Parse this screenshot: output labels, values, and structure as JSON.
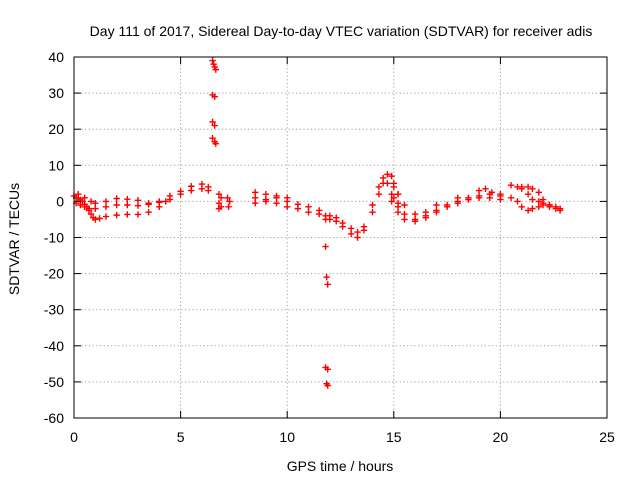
{
  "chart_data": {
    "type": "scatter",
    "title": "Day 111 of 2017, Sidereal Day-to-day VTEC variation (SDTVAR) for receiver adis",
    "xlabel": "GPS time / hours",
    "ylabel": "SDTVAR / TECUs",
    "xlim": [
      0,
      25
    ],
    "ylim": [
      -60,
      40
    ],
    "x_ticks": [
      0,
      5,
      10,
      15,
      20,
      25
    ],
    "y_ticks": [
      -60,
      -50,
      -40,
      -30,
      -20,
      -10,
      0,
      10,
      20,
      30,
      40
    ],
    "grid": true,
    "marker": "+",
    "colors": {
      "series": "#ff0000",
      "grid": "#a0a0a0",
      "axis": "#000000"
    },
    "series": [
      {
        "name": "SDTVAR",
        "points": [
          [
            0.0,
            1.5
          ],
          [
            0.1,
            1.0
          ],
          [
            0.2,
            0.8
          ],
          [
            0.3,
            0.4
          ],
          [
            0.4,
            0.0
          ],
          [
            0.5,
            -0.8
          ],
          [
            0.6,
            -1.5
          ],
          [
            0.7,
            -2.5
          ],
          [
            0.8,
            -3.5
          ],
          [
            0.9,
            -4.5
          ],
          [
            1.0,
            -5.0
          ],
          [
            1.2,
            -4.7
          ],
          [
            1.5,
            -4.2
          ],
          [
            2.0,
            -3.8
          ],
          [
            2.5,
            -3.6
          ],
          [
            3.0,
            -3.6
          ],
          [
            3.5,
            -3.0
          ],
          [
            4.0,
            -1.5
          ],
          [
            4.5,
            0.5
          ],
          [
            5.0,
            2.0
          ],
          [
            5.5,
            3.0
          ],
          [
            6.0,
            3.5
          ],
          [
            6.3,
            3.0
          ],
          [
            0.1,
            -0.5
          ],
          [
            0.3,
            -1.0
          ],
          [
            0.5,
            -1.5
          ],
          [
            0.7,
            -2.0
          ],
          [
            1.0,
            -2.0
          ],
          [
            1.5,
            -1.5
          ],
          [
            2.0,
            -1.0
          ],
          [
            2.5,
            -1.0
          ],
          [
            3.0,
            -1.2
          ],
          [
            3.5,
            -0.8
          ],
          [
            4.0,
            0.0
          ],
          [
            4.5,
            1.5
          ],
          [
            5.0,
            2.8
          ],
          [
            5.5,
            4.2
          ],
          [
            6.0,
            4.8
          ],
          [
            6.3,
            4.0
          ],
          [
            0.2,
            2.0
          ],
          [
            0.5,
            1.0
          ],
          [
            0.8,
            0.0
          ],
          [
            1.0,
            -0.5
          ],
          [
            1.5,
            0.0
          ],
          [
            2.0,
            0.8
          ],
          [
            2.5,
            0.6
          ],
          [
            3.0,
            0.3
          ],
          [
            3.5,
            -0.5
          ],
          [
            4.0,
            -0.3
          ],
          [
            4.3,
            0.0
          ],
          [
            6.5,
            39.0
          ],
          [
            6.55,
            38.0
          ],
          [
            6.6,
            37.2
          ],
          [
            6.65,
            36.5
          ],
          [
            6.5,
            29.5
          ],
          [
            6.6,
            29.0
          ],
          [
            6.5,
            22.0
          ],
          [
            6.6,
            21.0
          ],
          [
            6.5,
            17.5
          ],
          [
            6.6,
            16.5
          ],
          [
            6.65,
            16.0
          ],
          [
            6.8,
            2.0
          ],
          [
            6.9,
            1.0
          ],
          [
            6.8,
            -0.5
          ],
          [
            6.9,
            -1.5
          ],
          [
            6.8,
            -2.0
          ],
          [
            7.2,
            1.0
          ],
          [
            7.3,
            0.0
          ],
          [
            7.25,
            -1.5
          ],
          [
            8.5,
            2.5
          ],
          [
            9.0,
            2.0
          ],
          [
            9.5,
            1.5
          ],
          [
            10.0,
            0.0
          ],
          [
            10.5,
            -0.8
          ],
          [
            11.0,
            -1.5
          ],
          [
            11.5,
            -2.5
          ],
          [
            11.8,
            -4.0
          ],
          [
            8.5,
            1.0
          ],
          [
            9.0,
            0.5
          ],
          [
            9.5,
            -0.5
          ],
          [
            10.0,
            -1.5
          ],
          [
            10.5,
            -2.0
          ],
          [
            11.0,
            -3.0
          ],
          [
            11.5,
            -3.5
          ],
          [
            11.8,
            -5.0
          ],
          [
            8.5,
            -0.5
          ],
          [
            9.0,
            0.0
          ],
          [
            9.5,
            1.0
          ],
          [
            10.0,
            1.0
          ],
          [
            11.8,
            -12.5
          ],
          [
            11.85,
            -21.0
          ],
          [
            11.9,
            -23.0
          ],
          [
            11.8,
            -46.0
          ],
          [
            11.9,
            -46.5
          ],
          [
            11.85,
            -50.5
          ],
          [
            11.9,
            -51.0
          ],
          [
            12.0,
            -5.0
          ],
          [
            12.3,
            -5.5
          ],
          [
            12.6,
            -7.0
          ],
          [
            13.0,
            -9.0
          ],
          [
            13.3,
            -10.0
          ],
          [
            13.6,
            -8.0
          ],
          [
            14.0,
            -3.0
          ],
          [
            14.3,
            2.0
          ],
          [
            14.5,
            5.0
          ],
          [
            14.7,
            7.5
          ],
          [
            14.9,
            7.0
          ],
          [
            15.0,
            5.0
          ],
          [
            15.2,
            2.0
          ],
          [
            15.5,
            -1.0
          ],
          [
            16.0,
            -3.5
          ],
          [
            16.5,
            -4.0
          ],
          [
            17.0,
            -2.5
          ],
          [
            17.5,
            -1.0
          ],
          [
            18.0,
            0.0
          ],
          [
            18.5,
            1.0
          ],
          [
            19.0,
            1.5
          ],
          [
            19.5,
            2.0
          ],
          [
            20.0,
            1.5
          ],
          [
            12.0,
            -4.0
          ],
          [
            12.3,
            -4.5
          ],
          [
            12.6,
            -6.0
          ],
          [
            13.0,
            -7.5
          ],
          [
            13.3,
            -8.5
          ],
          [
            13.6,
            -7.0
          ],
          [
            14.0,
            -1.0
          ],
          [
            14.3,
            4.0
          ],
          [
            14.5,
            6.5
          ],
          [
            14.7,
            5.0
          ],
          [
            14.9,
            2.0
          ],
          [
            15.2,
            -1.5
          ],
          [
            15.5,
            -3.5
          ],
          [
            16.0,
            -5.0
          ],
          [
            16.5,
            -4.5
          ],
          [
            17.0,
            -3.0
          ],
          [
            17.5,
            -1.5
          ],
          [
            18.0,
            -0.5
          ],
          [
            18.5,
            0.5
          ],
          [
            19.0,
            1.0
          ],
          [
            19.5,
            1.0
          ],
          [
            20.0,
            0.5
          ],
          [
            14.9,
            0.0
          ],
          [
            15.2,
            -3.0
          ],
          [
            15.5,
            -5.0
          ],
          [
            16.0,
            -5.5
          ],
          [
            16.5,
            -3.0
          ],
          [
            17.0,
            -1.0
          ],
          [
            18.0,
            1.0
          ],
          [
            19.0,
            3.0
          ],
          [
            19.3,
            3.5
          ],
          [
            19.6,
            2.5
          ],
          [
            20.0,
            2.0
          ],
          [
            15.0,
            4.0
          ],
          [
            15.2,
            2.0
          ],
          [
            15.0,
            1.0
          ],
          [
            15.2,
            -0.5
          ],
          [
            20.5,
            4.5
          ],
          [
            20.8,
            4.0
          ],
          [
            21.0,
            3.5
          ],
          [
            21.3,
            2.0
          ],
          [
            21.5,
            0.5
          ],
          [
            21.8,
            0.0
          ],
          [
            22.0,
            -0.5
          ],
          [
            22.3,
            -1.0
          ],
          [
            22.6,
            -1.5
          ],
          [
            22.8,
            -2.0
          ],
          [
            20.5,
            1.0
          ],
          [
            20.8,
            0.0
          ],
          [
            21.0,
            -1.5
          ],
          [
            21.3,
            -2.5
          ],
          [
            21.5,
            -2.0
          ],
          [
            21.8,
            -1.5
          ],
          [
            22.0,
            -1.0
          ],
          [
            22.3,
            -1.5
          ],
          [
            22.6,
            -2.0
          ],
          [
            22.8,
            -2.5
          ],
          [
            21.0,
            4.0
          ],
          [
            21.3,
            4.0
          ],
          [
            21.5,
            3.5
          ],
          [
            21.8,
            2.5
          ],
          [
            22.0,
            0.5
          ],
          [
            22.3,
            -1.0
          ]
        ]
      }
    ]
  }
}
